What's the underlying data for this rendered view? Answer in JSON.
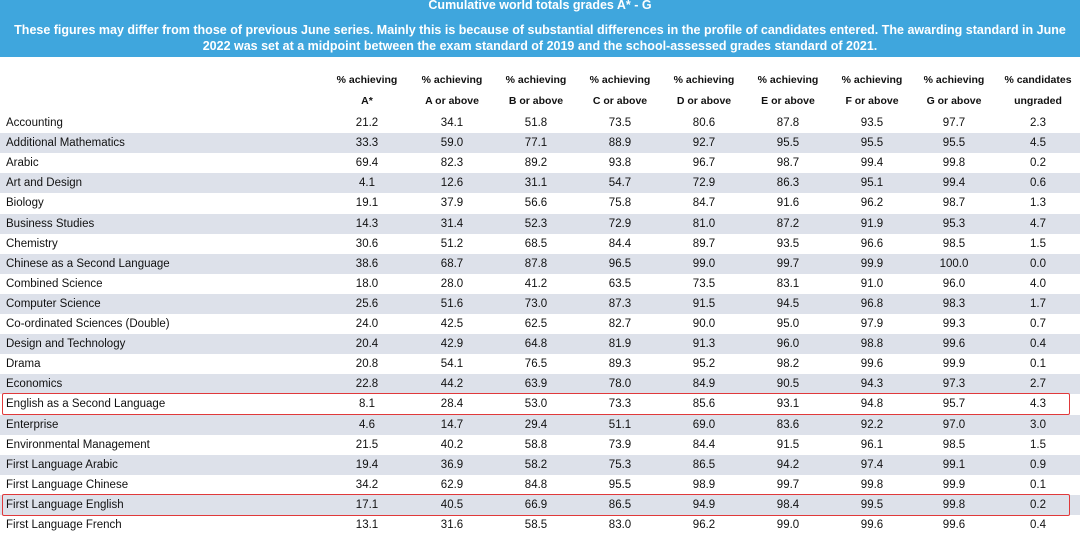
{
  "banner": {
    "title": "Cumulative world totals grades A* - G",
    "note": "These figures may differ from those of previous June series. Mainly this is because of substantial differences in the profile of candidates entered. The awarding standard in June 2022 was set at a midpoint between the exam standard of 2019 and the school-assessed grades standard of 2021."
  },
  "table": {
    "columns": [
      {
        "line1": "% achieving",
        "line2": "A*"
      },
      {
        "line1": "% achieving",
        "line2": "A or above"
      },
      {
        "line1": "% achieving",
        "line2": "B or above"
      },
      {
        "line1": "% achieving",
        "line2": "C or above"
      },
      {
        "line1": "% achieving",
        "line2": "D or above"
      },
      {
        "line1": "% achieving",
        "line2": "E or above"
      },
      {
        "line1": "% achieving",
        "line2": "F or above"
      },
      {
        "line1": "% achieving",
        "line2": "G or above"
      },
      {
        "line1": "% candidates",
        "line2": "ungraded"
      }
    ],
    "rows": [
      {
        "subject": "Accounting",
        "values": [
          "21.2",
          "34.1",
          "51.8",
          "73.5",
          "80.6",
          "87.8",
          "93.5",
          "97.7",
          "2.3"
        ]
      },
      {
        "subject": "Additional Mathematics",
        "values": [
          "33.3",
          "59.0",
          "77.1",
          "88.9",
          "92.7",
          "95.5",
          "95.5",
          "95.5",
          "4.5"
        ]
      },
      {
        "subject": "Arabic",
        "values": [
          "69.4",
          "82.3",
          "89.2",
          "93.8",
          "96.7",
          "98.7",
          "99.4",
          "99.8",
          "0.2"
        ]
      },
      {
        "subject": "Art and Design",
        "values": [
          "4.1",
          "12.6",
          "31.1",
          "54.7",
          "72.9",
          "86.3",
          "95.1",
          "99.4",
          "0.6"
        ]
      },
      {
        "subject": "Biology",
        "values": [
          "19.1",
          "37.9",
          "56.6",
          "75.8",
          "84.7",
          "91.6",
          "96.2",
          "98.7",
          "1.3"
        ]
      },
      {
        "subject": "Business Studies",
        "values": [
          "14.3",
          "31.4",
          "52.3",
          "72.9",
          "81.0",
          "87.2",
          "91.9",
          "95.3",
          "4.7"
        ]
      },
      {
        "subject": "Chemistry",
        "values": [
          "30.6",
          "51.2",
          "68.5",
          "84.4",
          "89.7",
          "93.5",
          "96.6",
          "98.5",
          "1.5"
        ]
      },
      {
        "subject": "Chinese as a Second Language",
        "values": [
          "38.6",
          "68.7",
          "87.8",
          "96.5",
          "99.0",
          "99.7",
          "99.9",
          "100.0",
          "0.0"
        ]
      },
      {
        "subject": "Combined Science",
        "values": [
          "18.0",
          "28.0",
          "41.2",
          "63.5",
          "73.5",
          "83.1",
          "91.0",
          "96.0",
          "4.0"
        ]
      },
      {
        "subject": "Computer Science",
        "values": [
          "25.6",
          "51.6",
          "73.0",
          "87.3",
          "91.5",
          "94.5",
          "96.8",
          "98.3",
          "1.7"
        ]
      },
      {
        "subject": "Co-ordinated Sciences (Double)",
        "values": [
          "24.0",
          "42.5",
          "62.5",
          "82.7",
          "90.0",
          "95.0",
          "97.9",
          "99.3",
          "0.7"
        ]
      },
      {
        "subject": "Design and Technology",
        "values": [
          "20.4",
          "42.9",
          "64.8",
          "81.9",
          "91.3",
          "96.0",
          "98.8",
          "99.6",
          "0.4"
        ]
      },
      {
        "subject": "Drama",
        "values": [
          "20.8",
          "54.1",
          "76.5",
          "89.3",
          "95.2",
          "98.2",
          "99.6",
          "99.9",
          "0.1"
        ]
      },
      {
        "subject": "Economics",
        "values": [
          "22.8",
          "44.2",
          "63.9",
          "78.0",
          "84.9",
          "90.5",
          "94.3",
          "97.3",
          "2.7"
        ]
      },
      {
        "subject": "English as a Second Language",
        "values": [
          "8.1",
          "28.4",
          "53.0",
          "73.3",
          "85.6",
          "93.1",
          "94.8",
          "95.7",
          "4.3"
        ],
        "highlighted": true
      },
      {
        "subject": "Enterprise",
        "values": [
          "4.6",
          "14.7",
          "29.4",
          "51.1",
          "69.0",
          "83.6",
          "92.2",
          "97.0",
          "3.0"
        ]
      },
      {
        "subject": "Environmental Management",
        "values": [
          "21.5",
          "40.2",
          "58.8",
          "73.9",
          "84.4",
          "91.5",
          "96.1",
          "98.5",
          "1.5"
        ]
      },
      {
        "subject": "First Language Arabic",
        "values": [
          "19.4",
          "36.9",
          "58.2",
          "75.3",
          "86.5",
          "94.2",
          "97.4",
          "99.1",
          "0.9"
        ]
      },
      {
        "subject": "First Language Chinese",
        "values": [
          "34.2",
          "62.9",
          "84.8",
          "95.5",
          "98.9",
          "99.7",
          "99.8",
          "99.9",
          "0.1"
        ]
      },
      {
        "subject": "First Language English",
        "values": [
          "17.1",
          "40.5",
          "66.9",
          "86.5",
          "94.9",
          "98.4",
          "99.5",
          "99.8",
          "0.2"
        ],
        "highlighted": true
      },
      {
        "subject": "First Language French",
        "values": [
          "13.1",
          "31.6",
          "58.5",
          "83.0",
          "96.2",
          "99.0",
          "99.6",
          "99.6",
          "0.4"
        ]
      }
    ]
  }
}
